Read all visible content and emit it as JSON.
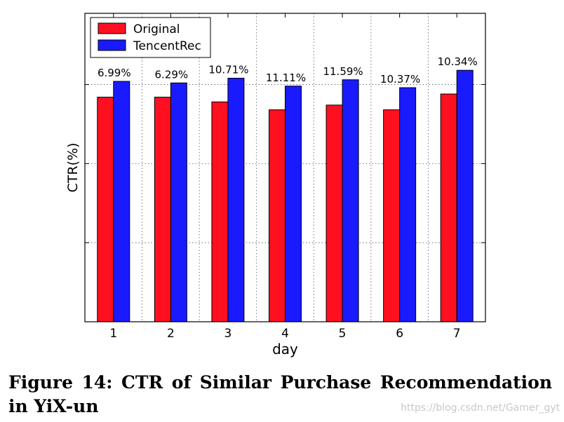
{
  "chart_data": {
    "type": "bar",
    "categories": [
      "1",
      "2",
      "3",
      "4",
      "5",
      "6",
      "7"
    ],
    "series": [
      {
        "name": "Original",
        "color": "#ff1020",
        "values": [
          2.84,
          2.84,
          2.78,
          2.68,
          2.74,
          2.68,
          2.88
        ]
      },
      {
        "name": "TencentRec",
        "color": "#1a1aff",
        "values": [
          3.04,
          3.02,
          3.08,
          2.98,
          3.06,
          2.96,
          3.18
        ]
      }
    ],
    "data_labels": [
      "6.99%",
      "6.29%",
      "10.71%",
      "11.11%",
      "11.59%",
      "10.37%",
      "10.34%"
    ],
    "xlabel": "day",
    "ylabel": "CTR(%)",
    "ylim": [
      0,
      3.9
    ],
    "yticks": [
      1,
      2,
      3
    ],
    "ytick_labels_shown": false,
    "grid": true,
    "legend_position": "top-left"
  },
  "caption": "Figure 14: CTR of Similar Purchase Recommendation in YiX-un",
  "watermark": "https://blog.csdn.net/Gamer_gyt"
}
